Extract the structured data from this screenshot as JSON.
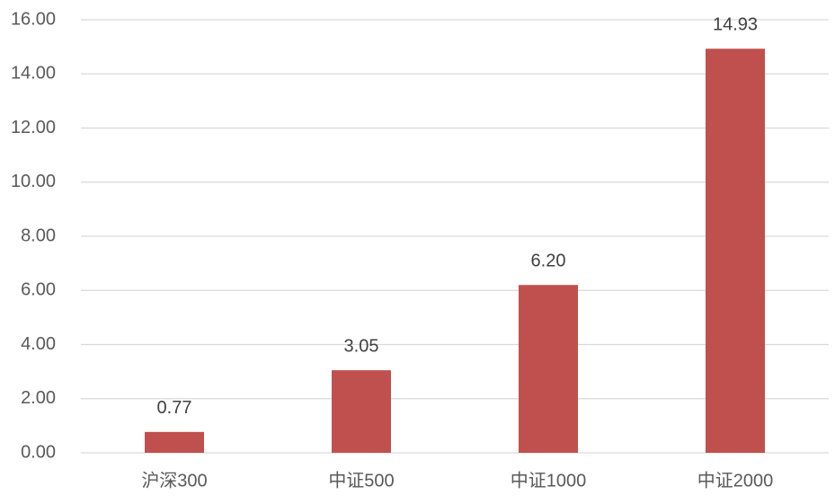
{
  "chart_data": {
    "type": "bar",
    "categories": [
      "沪深300",
      "中证500",
      "中证1000",
      "中证2000"
    ],
    "values": [
      0.77,
      3.05,
      6.2,
      14.93
    ],
    "value_labels": [
      "0.77",
      "3.05",
      "6.20",
      "14.93"
    ],
    "color": "#c0504d",
    "ylim": [
      0,
      16
    ],
    "yticks": [
      {
        "value": 0,
        "label": "0.00"
      },
      {
        "value": 2,
        "label": "2.00"
      },
      {
        "value": 4,
        "label": "4.00"
      },
      {
        "value": 6,
        "label": "6.00"
      },
      {
        "value": 8,
        "label": "8.00"
      },
      {
        "value": 10,
        "label": "10.00"
      },
      {
        "value": 12,
        "label": "12.00"
      },
      {
        "value": 14,
        "label": "14.00"
      },
      {
        "value": 16,
        "label": "16.00"
      }
    ],
    "grid": true
  }
}
